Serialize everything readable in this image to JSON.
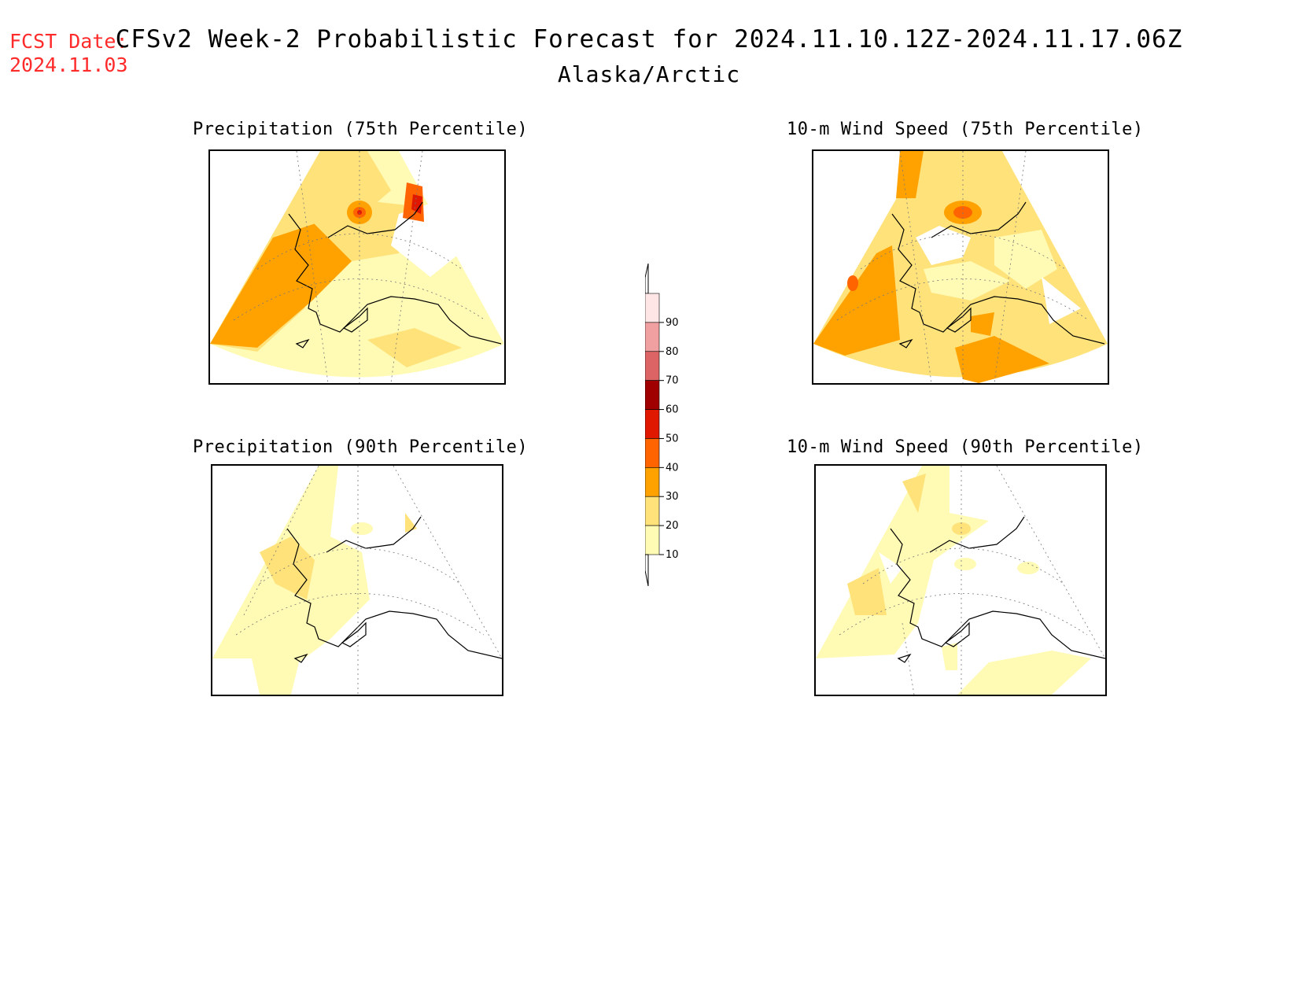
{
  "header": {
    "fcst_label": "FCST Date:",
    "fcst_date": "2024.11.03",
    "title": "CFSv2 Week-2 Probabilistic Forecast for 2024.11.10.12Z-2024.11.17.06Z",
    "subtitle": "Alaska/Arctic"
  },
  "panels": [
    {
      "title": "Precipitation (75th Percentile)"
    },
    {
      "title": "10-m Wind Speed (75th Percentile)"
    },
    {
      "title": "Precipitation (90th Percentile)"
    },
    {
      "title": "10-m Wind Speed (90th Percentile)"
    }
  ],
  "colorbar": {
    "levels": [
      "10",
      "20",
      "30",
      "40",
      "50",
      "60",
      "70",
      "80",
      "90"
    ],
    "colors": {
      "c10": "#fffab4",
      "c20": "#ffe27a",
      "c30": "#ffa200",
      "c40": "#ff6400",
      "c50": "#e01800",
      "c60": "#a00000",
      "c70": "#dc6464",
      "c80": "#f0a0a0",
      "c90": "#ffe6e6"
    }
  }
}
